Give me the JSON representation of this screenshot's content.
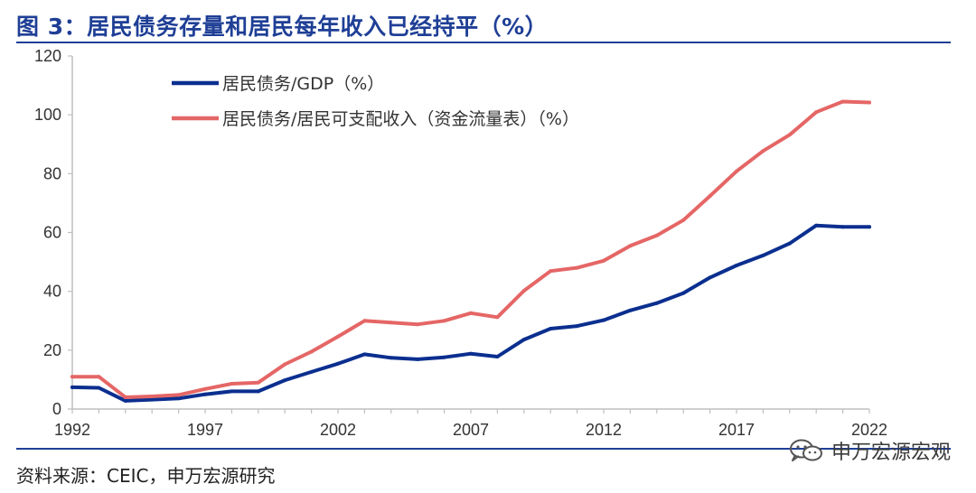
{
  "header": {
    "title": "图 3：居民债务存量和居民每年收入已经持平（%）"
  },
  "footer": {
    "source": "资料来源：CEIC，申万宏源研究",
    "watermark": "申万宏源宏观",
    "watermark_icon": "wechat-icon"
  },
  "colors": {
    "title": "#1f3f96",
    "gdp_series": "#0b2f8f",
    "income_series": "#e56666",
    "axis": "#bfbfbf"
  },
  "chart_data": {
    "type": "line",
    "title": "",
    "xlabel": "",
    "ylabel": "",
    "ylim": [
      0,
      120
    ],
    "xlim": [
      1992,
      2022
    ],
    "yticks": [
      0,
      20,
      40,
      60,
      80,
      100,
      120
    ],
    "xticks": [
      1992,
      1997,
      2002,
      2007,
      2012,
      2017,
      2022
    ],
    "grid": false,
    "legend_position": "top-left",
    "x": [
      1992,
      1993,
      1994,
      1995,
      1996,
      1997,
      1998,
      1999,
      2000,
      2001,
      2002,
      2003,
      2004,
      2005,
      2006,
      2007,
      2008,
      2009,
      2010,
      2011,
      2012,
      2013,
      2014,
      2015,
      2016,
      2017,
      2018,
      2019,
      2020,
      2021,
      2022
    ],
    "series": [
      {
        "name": "居民债务/GDP（%）",
        "color": "#0b2f8f",
        "values": [
          7.4,
          7.2,
          2.8,
          3.2,
          3.6,
          5.0,
          6.0,
          6.0,
          9.8,
          12.6,
          15.4,
          18.6,
          17.4,
          16.9,
          17.6,
          18.8,
          17.8,
          23.6,
          27.3,
          28.2,
          30.2,
          33.5,
          36.0,
          39.4,
          44.7,
          48.8,
          52.2,
          56.3,
          62.4,
          61.9,
          61.9
        ]
      },
      {
        "name": "居民债务/居民可支配收入（资金流量表）（%）",
        "color": "#e56666",
        "values": [
          11.0,
          11.0,
          4.0,
          4.3,
          4.8,
          6.8,
          8.6,
          9.0,
          15.2,
          19.5,
          24.6,
          30.0,
          29.4,
          28.8,
          30.0,
          32.6,
          31.2,
          40.2,
          46.9,
          48.0,
          50.4,
          55.5,
          59.0,
          64.2,
          72.4,
          80.8,
          87.7,
          93.2,
          100.9,
          104.5,
          104.2
        ]
      }
    ]
  }
}
